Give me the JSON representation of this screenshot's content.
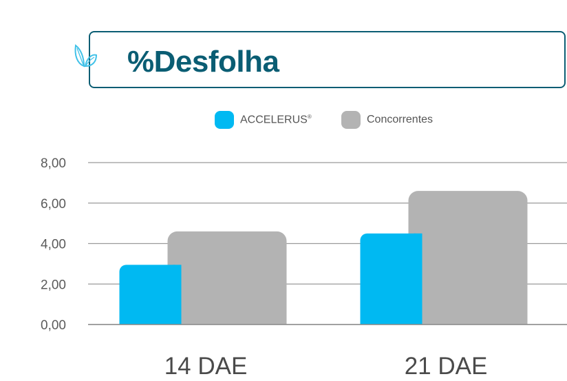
{
  "title": "%Desfolha",
  "legend": {
    "accelerus": {
      "label": "ACCELERUS",
      "sup": "®",
      "color": "#00b9f2"
    },
    "competitors": {
      "label": "Concorrentes",
      "color": "#b3b3b3"
    }
  },
  "chart_data": {
    "type": "bar",
    "categories": [
      "14 DAE",
      "21 DAE"
    ],
    "series": [
      {
        "name": "ACCELERUS®",
        "values": [
          2.95,
          4.5
        ],
        "color": "#00b9f2"
      },
      {
        "name": "Concorrentes",
        "values": [
          4.6,
          6.6
        ],
        "color": "#b3b3b3"
      }
    ],
    "yticks": [
      "0,00",
      "2,00",
      "4,00",
      "6,00",
      "8,00"
    ],
    "ylim": [
      0,
      8
    ],
    "grid": true,
    "legend_position": "top-center",
    "title": "%Desfolha",
    "xlabel": "",
    "ylabel": ""
  }
}
